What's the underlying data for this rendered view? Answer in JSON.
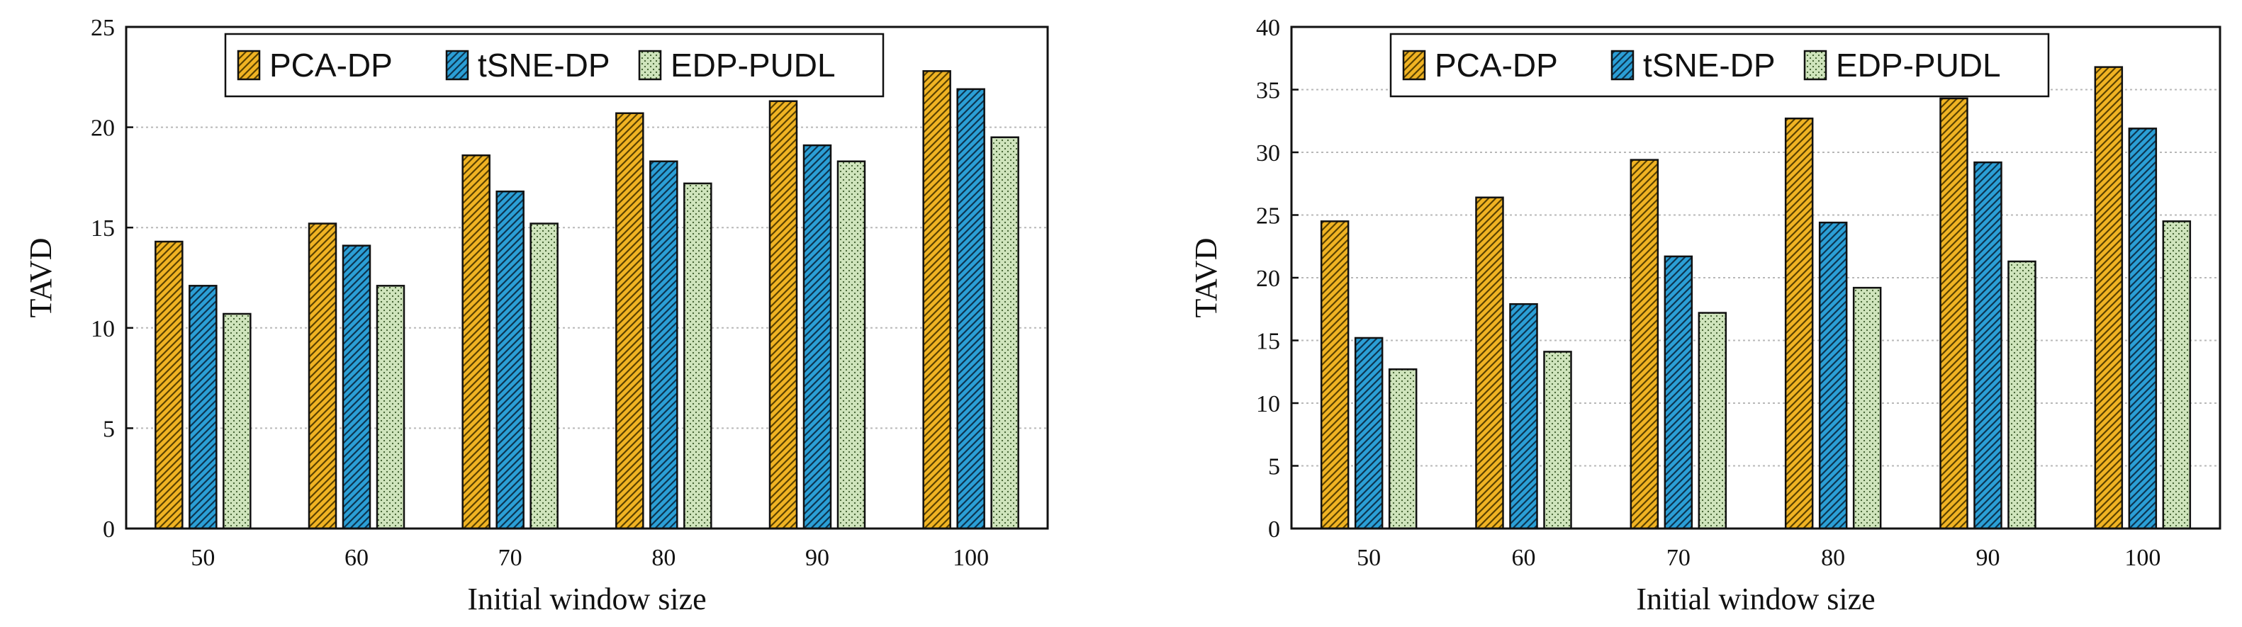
{
  "colors": {
    "pca": "#f0b323",
    "tsne": "#2b9fd6",
    "edp": "#cfe4bc",
    "grid": "#b8b8b8"
  },
  "legend_labels": [
    "PCA-DP",
    "tSNE-DP",
    "EDP-PUDL"
  ],
  "chart_data": [
    {
      "type": "bar",
      "xlabel": "Initial window size",
      "ylabel": "TAVD",
      "categories": [
        "50",
        "60",
        "70",
        "80",
        "90",
        "100"
      ],
      "ylim": [
        0,
        25
      ],
      "yticks": [
        0,
        5,
        10,
        15,
        20,
        25
      ],
      "grid": "horizontal dotted",
      "legend_position": "top-center",
      "series": [
        {
          "name": "PCA-DP",
          "values": [
            14.3,
            15.2,
            18.6,
            20.7,
            21.3,
            22.8
          ]
        },
        {
          "name": "tSNE-DP",
          "values": [
            12.1,
            14.1,
            16.8,
            18.3,
            19.1,
            21.9
          ]
        },
        {
          "name": "EDP-PUDL",
          "values": [
            10.7,
            12.1,
            15.2,
            17.2,
            18.3,
            19.5
          ]
        }
      ]
    },
    {
      "type": "bar",
      "xlabel": "Initial window size",
      "ylabel": "TAVD",
      "categories": [
        "50",
        "60",
        "70",
        "80",
        "90",
        "100"
      ],
      "ylim": [
        0,
        40
      ],
      "yticks": [
        0,
        5,
        10,
        15,
        20,
        25,
        30,
        35,
        40
      ],
      "grid": "horizontal dotted",
      "legend_position": "top-center",
      "series": [
        {
          "name": "PCA-DP",
          "values": [
            24.5,
            26.4,
            29.4,
            32.7,
            34.3,
            36.8
          ]
        },
        {
          "name": "tSNE-DP",
          "values": [
            15.2,
            17.9,
            21.7,
            24.4,
            29.2,
            31.9
          ]
        },
        {
          "name": "EDP-PUDL",
          "values": [
            12.7,
            14.1,
            17.2,
            19.2,
            21.3,
            24.5
          ]
        }
      ]
    }
  ]
}
